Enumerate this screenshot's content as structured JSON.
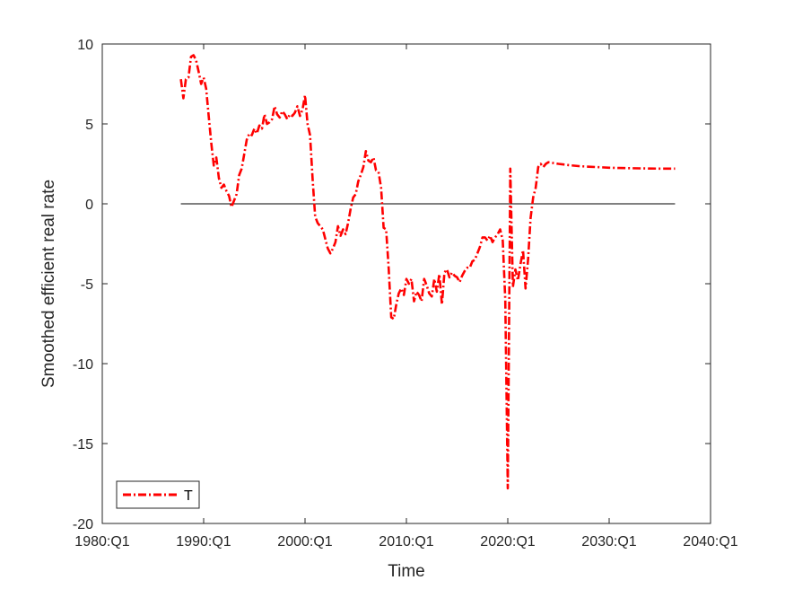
{
  "chart_data": {
    "type": "line",
    "title": "",
    "xlabel": "Time",
    "ylabel": "Smoothed efficient real rate",
    "xlim": [
      1980,
      2040
    ],
    "ylim": [
      -20,
      10
    ],
    "x_ticks": [
      {
        "value": 1980,
        "label": "1980:Q1"
      },
      {
        "value": 1990,
        "label": "1990:Q1"
      },
      {
        "value": 2000,
        "label": "2000:Q1"
      },
      {
        "value": 2010,
        "label": "2010:Q1"
      },
      {
        "value": 2020,
        "label": "2020:Q1"
      },
      {
        "value": 2030,
        "label": "2030:Q1"
      },
      {
        "value": 2040,
        "label": "2040:Q1"
      }
    ],
    "y_ticks": [
      {
        "value": 10,
        "label": "10"
      },
      {
        "value": 5,
        "label": "5"
      },
      {
        "value": 0,
        "label": "0"
      },
      {
        "value": -5,
        "label": "-5"
      },
      {
        "value": -10,
        "label": "-10"
      },
      {
        "value": -15,
        "label": "-15"
      },
      {
        "value": -20,
        "label": "-20"
      }
    ],
    "grid": false,
    "legend": {
      "position": "bottom-left"
    },
    "reference_line": {
      "y": 0,
      "x_start": 1987.75,
      "x_end": 2036.5,
      "color": "#000000"
    },
    "series": [
      {
        "name": "T",
        "color": "#ff0000",
        "line_style": "dash-dot",
        "points": [
          [
            1987.75,
            7.8
          ],
          [
            1988.0,
            6.6
          ],
          [
            1988.25,
            7.8
          ],
          [
            1988.5,
            7.9
          ],
          [
            1988.75,
            9.2
          ],
          [
            1989.0,
            9.3
          ],
          [
            1989.25,
            9.0
          ],
          [
            1989.5,
            8.3
          ],
          [
            1989.75,
            7.5
          ],
          [
            1990.0,
            7.9
          ],
          [
            1990.25,
            7.2
          ],
          [
            1990.5,
            5.5
          ],
          [
            1990.75,
            3.8
          ],
          [
            1991.0,
            2.4
          ],
          [
            1991.25,
            2.9
          ],
          [
            1991.5,
            1.6
          ],
          [
            1991.75,
            1.0
          ],
          [
            1992.0,
            1.2
          ],
          [
            1992.25,
            0.8
          ],
          [
            1992.5,
            0.5
          ],
          [
            1992.75,
            -0.2
          ],
          [
            1993.0,
            0.2
          ],
          [
            1993.25,
            0.6
          ],
          [
            1993.5,
            1.8
          ],
          [
            1993.75,
            2.2
          ],
          [
            1994.0,
            3.1
          ],
          [
            1994.25,
            4.0
          ],
          [
            1994.5,
            4.4
          ],
          [
            1994.75,
            4.3
          ],
          [
            1995.0,
            4.7
          ],
          [
            1995.25,
            4.4
          ],
          [
            1995.5,
            4.9
          ],
          [
            1995.75,
            4.7
          ],
          [
            1996.0,
            5.6
          ],
          [
            1996.25,
            5.0
          ],
          [
            1996.5,
            5.1
          ],
          [
            1996.75,
            5.3
          ],
          [
            1997.0,
            6.1
          ],
          [
            1997.25,
            5.6
          ],
          [
            1997.5,
            5.4
          ],
          [
            1997.75,
            5.8
          ],
          [
            1998.0,
            5.6
          ],
          [
            1998.25,
            5.3
          ],
          [
            1998.5,
            5.6
          ],
          [
            1998.75,
            5.5
          ],
          [
            1999.0,
            5.7
          ],
          [
            1999.25,
            6.1
          ],
          [
            1999.5,
            5.5
          ],
          [
            1999.75,
            5.9
          ],
          [
            2000.0,
            6.8
          ],
          [
            2000.25,
            5.0
          ],
          [
            2000.5,
            4.3
          ],
          [
            2000.75,
            1.5
          ],
          [
            2001.0,
            -0.8
          ],
          [
            2001.25,
            -1.2
          ],
          [
            2001.5,
            -1.4
          ],
          [
            2001.75,
            -1.6
          ],
          [
            2002.0,
            -2.2
          ],
          [
            2002.25,
            -2.8
          ],
          [
            2002.5,
            -3.1
          ],
          [
            2002.75,
            -2.8
          ],
          [
            2003.0,
            -2.4
          ],
          [
            2003.25,
            -1.4
          ],
          [
            2003.5,
            -2.0
          ],
          [
            2003.75,
            -1.6
          ],
          [
            2004.0,
            -1.9
          ],
          [
            2004.25,
            -1.2
          ],
          [
            2004.5,
            -0.3
          ],
          [
            2004.75,
            0.4
          ],
          [
            2005.0,
            0.6
          ],
          [
            2005.25,
            1.4
          ],
          [
            2005.5,
            1.8
          ],
          [
            2005.75,
            2.3
          ],
          [
            2006.0,
            3.3
          ],
          [
            2006.25,
            2.7
          ],
          [
            2006.5,
            2.6
          ],
          [
            2006.75,
            2.9
          ],
          [
            2007.0,
            2.1
          ],
          [
            2007.25,
            2.0
          ],
          [
            2007.5,
            1.0
          ],
          [
            2007.75,
            -1.5
          ],
          [
            2008.0,
            -1.6
          ],
          [
            2008.25,
            -4.0
          ],
          [
            2008.5,
            -7.1
          ],
          [
            2008.75,
            -7.2
          ],
          [
            2009.0,
            -6.3
          ],
          [
            2009.25,
            -5.6
          ],
          [
            2009.5,
            -5.3
          ],
          [
            2009.75,
            -5.7
          ],
          [
            2010.0,
            -4.7
          ],
          [
            2010.25,
            -5.0
          ],
          [
            2010.5,
            -4.7
          ],
          [
            2010.75,
            -6.1
          ],
          [
            2011.0,
            -5.5
          ],
          [
            2011.25,
            -5.7
          ],
          [
            2011.5,
            -6.1
          ],
          [
            2011.75,
            -4.7
          ],
          [
            2012.0,
            -5.1
          ],
          [
            2012.25,
            -5.6
          ],
          [
            2012.5,
            -5.8
          ],
          [
            2012.75,
            -4.7
          ],
          [
            2013.0,
            -5.5
          ],
          [
            2013.25,
            -4.4
          ],
          [
            2013.5,
            -6.3
          ],
          [
            2013.75,
            -4.3
          ],
          [
            2014.0,
            -4.1
          ],
          [
            2014.25,
            -4.6
          ],
          [
            2014.5,
            -4.3
          ],
          [
            2014.75,
            -4.5
          ],
          [
            2015.0,
            -4.6
          ],
          [
            2015.25,
            -4.9
          ],
          [
            2015.5,
            -4.5
          ],
          [
            2015.75,
            -4.2
          ],
          [
            2016.0,
            -4.0
          ],
          [
            2016.25,
            -4.0
          ],
          [
            2016.5,
            -3.6
          ],
          [
            2016.75,
            -3.5
          ],
          [
            2017.0,
            -3.1
          ],
          [
            2017.25,
            -2.7
          ],
          [
            2017.5,
            -2.1
          ],
          [
            2017.75,
            -2.1
          ],
          [
            2018.0,
            -2.3
          ],
          [
            2018.25,
            -2.0
          ],
          [
            2018.5,
            -2.4
          ],
          [
            2018.75,
            -2.1
          ],
          [
            2019.0,
            -1.9
          ],
          [
            2019.25,
            -1.6
          ],
          [
            2019.5,
            -2.3
          ],
          [
            2019.75,
            -6.0
          ],
          [
            2020.0,
            -17.8
          ],
          [
            2020.25,
            2.2
          ],
          [
            2020.5,
            -5.2
          ],
          [
            2020.75,
            -4.1
          ],
          [
            2021.0,
            -4.8
          ],
          [
            2021.25,
            -3.8
          ],
          [
            2021.5,
            -2.9
          ],
          [
            2021.75,
            -5.3
          ],
          [
            2022.0,
            -3.5
          ],
          [
            2022.25,
            -0.9
          ],
          [
            2022.5,
            0.4
          ],
          [
            2022.75,
            1.0
          ],
          [
            2023.0,
            2.3
          ],
          [
            2023.25,
            2.5
          ],
          [
            2023.5,
            2.3
          ],
          [
            2023.75,
            2.5
          ],
          [
            2024.0,
            2.6
          ],
          [
            2024.5,
            2.55
          ],
          [
            2025.0,
            2.5
          ],
          [
            2026.0,
            2.42
          ],
          [
            2027.0,
            2.36
          ],
          [
            2028.0,
            2.32
          ],
          [
            2029.0,
            2.29
          ],
          [
            2030.0,
            2.26
          ],
          [
            2031.0,
            2.24
          ],
          [
            2032.0,
            2.23
          ],
          [
            2033.0,
            2.22
          ],
          [
            2034.0,
            2.21
          ],
          [
            2035.0,
            2.2
          ],
          [
            2036.5,
            2.2
          ]
        ]
      }
    ]
  }
}
